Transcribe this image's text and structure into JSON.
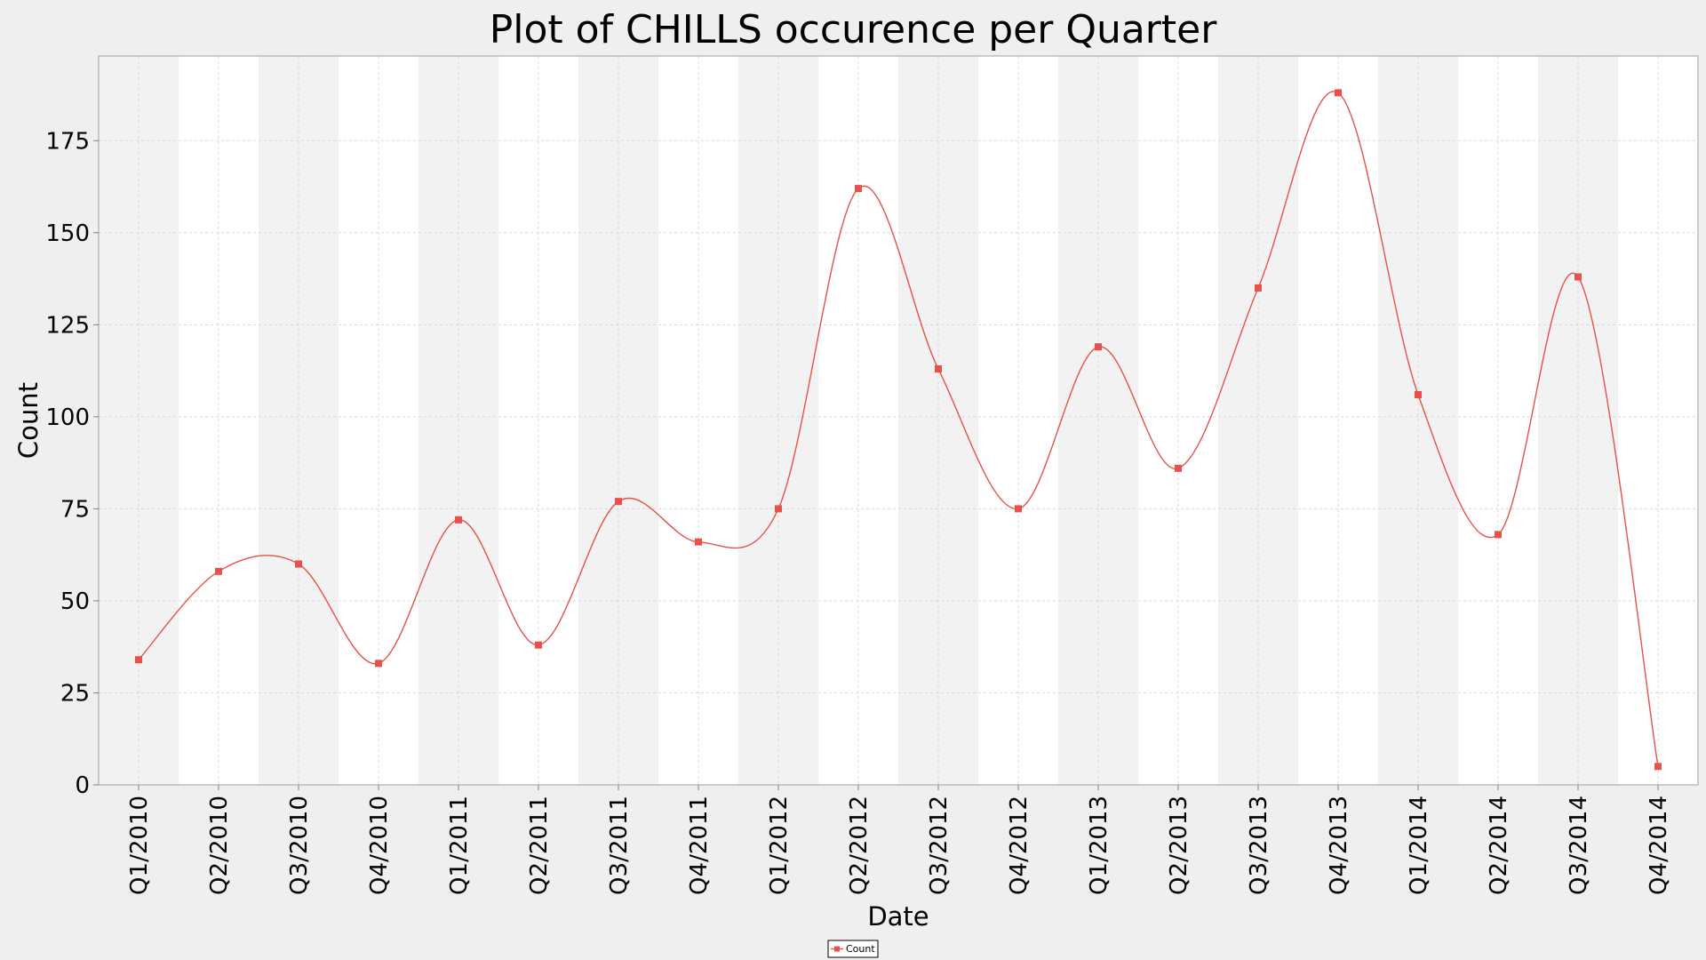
{
  "chart_data": {
    "type": "line",
    "title": "Plot of CHILLS occurence per Quarter",
    "xlabel": "Date",
    "ylabel": "Count",
    "categories": [
      "Q1/2010",
      "Q2/2010",
      "Q3/2010",
      "Q4/2010",
      "Q1/2011",
      "Q2/2011",
      "Q3/2011",
      "Q4/2011",
      "Q1/2012",
      "Q2/2012",
      "Q3/2012",
      "Q4/2012",
      "Q1/2013",
      "Q2/2013",
      "Q3/2013",
      "Q4/2013",
      "Q1/2014",
      "Q2/2014",
      "Q3/2014",
      "Q4/2014"
    ],
    "series": [
      {
        "name": "Count",
        "color": "#e8504a",
        "values": [
          34,
          58,
          60,
          33,
          72,
          38,
          77,
          66,
          75,
          162,
          113,
          75,
          119,
          86,
          135,
          188,
          106,
          68,
          138,
          5
        ]
      }
    ],
    "ylim": [
      0,
      198
    ],
    "yticks": [
      0,
      25,
      50,
      75,
      100,
      125,
      150,
      175
    ],
    "grid": true,
    "alternating_bands": true,
    "legend_position": "bottom-center",
    "curve": "smoothed"
  }
}
